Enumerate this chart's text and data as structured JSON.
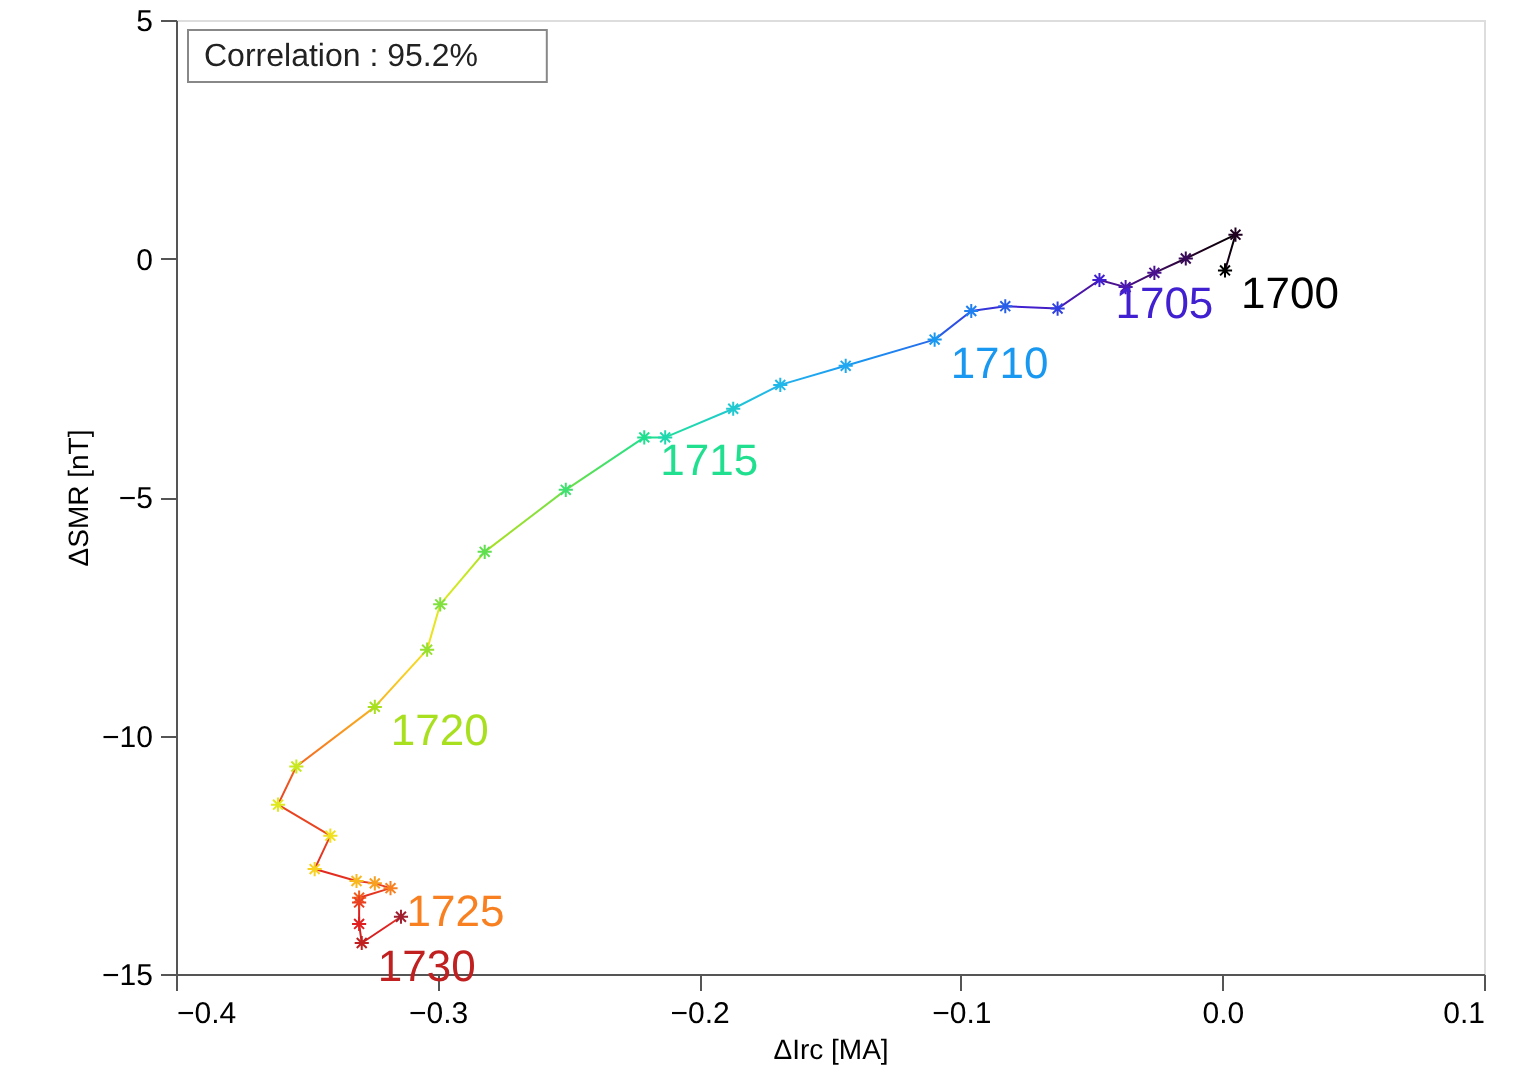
{
  "chart_data": {
    "type": "line",
    "xlabel": "ΔIrc [MA]",
    "ylabel": "ΔSMR [nT]",
    "x": [
      0.001,
      0.005,
      -0.014,
      -0.026,
      -0.037,
      -0.047,
      -0.063,
      -0.083,
      -0.096,
      -0.11,
      -0.144,
      -0.169,
      -0.187,
      -0.213,
      -0.221,
      -0.251,
      -0.282,
      -0.299,
      -0.304,
      -0.324,
      -0.354,
      -0.361,
      -0.341,
      -0.347,
      -0.331,
      -0.324,
      -0.318,
      -0.33,
      -0.33,
      -0.33,
      -0.329,
      -0.314
    ],
    "values": [
      -0.25,
      0.5,
      0.0,
      -0.3,
      -0.6,
      -0.45,
      -1.05,
      -1.0,
      -1.1,
      -1.7,
      -2.25,
      -2.65,
      -3.15,
      -3.75,
      -3.75,
      -4.85,
      -6.15,
      -7.25,
      -8.2,
      -9.4,
      -10.65,
      -11.45,
      -12.1,
      -12.8,
      -13.05,
      -13.1,
      -13.2,
      -13.4,
      -13.5,
      -13.95,
      -14.35,
      -13.8
    ],
    "colors": [
      "#000000",
      "#200020",
      "#3a0a5a",
      "#4a1090",
      "#4a18b0",
      "#4020d0",
      "#3040e0",
      "#2860e8",
      "#2080f0",
      "#1898f0",
      "#20a8f0",
      "#20b8e8",
      "#20c8d0",
      "#20d8b0",
      "#20e090",
      "#40e070",
      "#60e050",
      "#80e040",
      "#98e030",
      "#a8e020",
      "#c8e820",
      "#e0e820",
      "#f0e020",
      "#f8d020",
      "#f8b820",
      "#f8a020",
      "#f88020",
      "#f06020",
      "#e84020",
      "#e02020",
      "#c02020",
      "#a02030"
    ],
    "marker": "cross",
    "line_style": "solid",
    "grid": false,
    "xlim": [
      -0.4,
      0.1
    ],
    "ylim": [
      -15,
      5
    ],
    "xticks": [
      {
        "value": -0.4,
        "label": "−0.4"
      },
      {
        "value": -0.3,
        "label": "−0.3"
      },
      {
        "value": -0.2,
        "label": "−0.2"
      },
      {
        "value": -0.1,
        "label": "−0.1"
      },
      {
        "value": 0,
        "label": "0.0"
      },
      {
        "value": 0.1,
        "label": "0.1"
      }
    ],
    "yticks": [
      {
        "value": -15,
        "label": "−15"
      },
      {
        "value": -10,
        "label": "−10"
      },
      {
        "value": -5,
        "label": "−5"
      },
      0,
      5
    ],
    "annotations": [
      "Correlation : 95.2%",
      {
        "text": "1700",
        "x": 0.001,
        "y": -0.25
      },
      {
        "text": "1705",
        "x": -0.047,
        "y": -0.45
      },
      {
        "text": "1710",
        "x": -0.11,
        "y": -1.7
      },
      {
        "text": "1715",
        "x": -0.221,
        "y": -3.75
      },
      {
        "text": "1720",
        "x": -0.324,
        "y": -9.4
      },
      {
        "text": "1725",
        "x": -0.318,
        "y": -13.2
      },
      {
        "text": "1730",
        "x": -0.329,
        "y": -14.35
      }
    ]
  }
}
